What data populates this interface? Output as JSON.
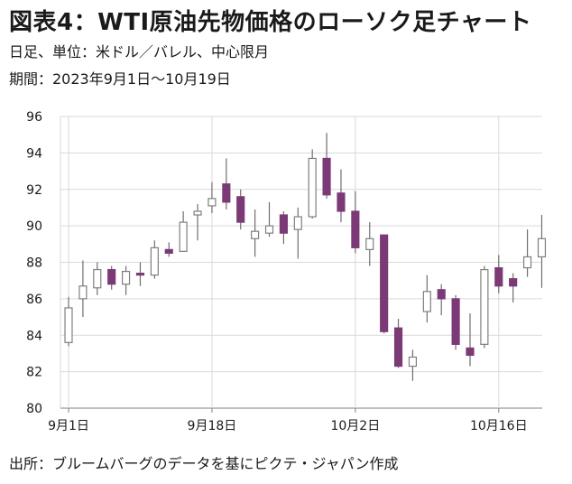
{
  "header": {
    "title": "図表4：WTI原油先物価格のローソク足チャート",
    "subtitle": "日足、単位：米ドル／バレル、中心限月",
    "period": "期間：2023年9月1日～10月19日"
  },
  "footer": {
    "source": "出所：ブルームバーグのデータを基にピクテ・ジャパン作成"
  },
  "colors": {
    "down_fill": "#7b3a76",
    "down_stroke": "#7b3a76",
    "up_fill": "#ffffff",
    "up_stroke": "#7f7f7f",
    "wick": "#6f6f6f"
  },
  "chart_data": {
    "type": "candlestick",
    "ylim": [
      80,
      96
    ],
    "yticks": [
      80,
      82,
      84,
      86,
      88,
      90,
      92,
      94,
      96
    ],
    "xtick_labels": [
      "9月1日",
      "9月18日",
      "10月2日",
      "10月16日"
    ],
    "xtick_dates": [
      "2023-09-01",
      "2023-09-18",
      "2023-10-02",
      "2023-10-16"
    ],
    "grid": true,
    "candles": [
      {
        "date": "2023-09-01",
        "open": 83.6,
        "high": 86.1,
        "low": 83.4,
        "close": 85.5
      },
      {
        "date": "2023-09-05",
        "open": 86.0,
        "high": 88.1,
        "low": 85.0,
        "close": 86.7
      },
      {
        "date": "2023-09-06",
        "open": 86.6,
        "high": 88.0,
        "low": 86.2,
        "close": 87.6
      },
      {
        "date": "2023-09-07",
        "open": 87.6,
        "high": 87.8,
        "low": 86.5,
        "close": 86.8
      },
      {
        "date": "2023-09-08",
        "open": 86.8,
        "high": 87.8,
        "low": 86.2,
        "close": 87.5
      },
      {
        "date": "2023-09-11",
        "open": 87.4,
        "high": 88.0,
        "low": 86.7,
        "close": 87.3
      },
      {
        "date": "2023-09-12",
        "open": 87.3,
        "high": 89.2,
        "low": 87.1,
        "close": 88.8
      },
      {
        "date": "2023-09-13",
        "open": 88.7,
        "high": 89.1,
        "low": 88.3,
        "close": 88.5
      },
      {
        "date": "2023-09-14",
        "open": 88.6,
        "high": 90.8,
        "low": 88.6,
        "close": 90.2
      },
      {
        "date": "2023-09-15",
        "open": 90.6,
        "high": 91.2,
        "low": 89.2,
        "close": 90.8
      },
      {
        "date": "2023-09-18",
        "open": 91.1,
        "high": 92.4,
        "low": 90.7,
        "close": 91.5
      },
      {
        "date": "2023-09-19",
        "open": 92.3,
        "high": 93.7,
        "low": 90.9,
        "close": 91.3
      },
      {
        "date": "2023-09-20",
        "open": 91.6,
        "high": 92.0,
        "low": 89.8,
        "close": 90.2
      },
      {
        "date": "2023-09-21",
        "open": 89.3,
        "high": 90.9,
        "low": 88.3,
        "close": 89.7
      },
      {
        "date": "2023-09-22",
        "open": 89.6,
        "high": 91.3,
        "low": 89.4,
        "close": 90.0
      },
      {
        "date": "2023-09-25",
        "open": 90.6,
        "high": 90.8,
        "low": 89.0,
        "close": 89.6
      },
      {
        "date": "2023-09-26",
        "open": 89.8,
        "high": 91.0,
        "low": 88.2,
        "close": 90.5
      },
      {
        "date": "2023-09-27",
        "open": 90.5,
        "high": 94.2,
        "low": 90.4,
        "close": 93.7
      },
      {
        "date": "2023-09-28",
        "open": 93.7,
        "high": 95.1,
        "low": 91.5,
        "close": 91.7
      },
      {
        "date": "2023-09-29",
        "open": 91.8,
        "high": 93.1,
        "low": 90.2,
        "close": 90.8
      },
      {
        "date": "2023-10-02",
        "open": 90.8,
        "high": 91.9,
        "low": 88.5,
        "close": 88.8
      },
      {
        "date": "2023-10-03",
        "open": 88.7,
        "high": 90.2,
        "low": 87.8,
        "close": 89.3
      },
      {
        "date": "2023-10-04",
        "open": 89.5,
        "high": 89.5,
        "low": 84.1,
        "close": 84.2
      },
      {
        "date": "2023-10-05",
        "open": 84.4,
        "high": 84.9,
        "low": 82.2,
        "close": 82.3
      },
      {
        "date": "2023-10-06",
        "open": 82.3,
        "high": 83.2,
        "low": 81.5,
        "close": 82.8
      },
      {
        "date": "2023-10-09",
        "open": 85.3,
        "high": 87.3,
        "low": 84.7,
        "close": 86.4
      },
      {
        "date": "2023-10-10",
        "open": 86.5,
        "high": 86.8,
        "low": 85.1,
        "close": 86.0
      },
      {
        "date": "2023-10-11",
        "open": 86.0,
        "high": 86.2,
        "low": 83.2,
        "close": 83.5
      },
      {
        "date": "2023-10-12",
        "open": 83.3,
        "high": 85.2,
        "low": 82.3,
        "close": 82.9
      },
      {
        "date": "2023-10-13",
        "open": 83.5,
        "high": 87.8,
        "low": 83.3,
        "close": 87.6
      },
      {
        "date": "2023-10-16",
        "open": 87.7,
        "high": 88.4,
        "low": 86.3,
        "close": 86.7
      },
      {
        "date": "2023-10-17",
        "open": 87.1,
        "high": 87.4,
        "low": 85.8,
        "close": 86.7
      },
      {
        "date": "2023-10-18",
        "open": 87.7,
        "high": 89.8,
        "low": 87.2,
        "close": 88.3
      },
      {
        "date": "2023-10-19",
        "open": 88.3,
        "high": 90.6,
        "low": 86.6,
        "close": 89.3
      }
    ]
  }
}
